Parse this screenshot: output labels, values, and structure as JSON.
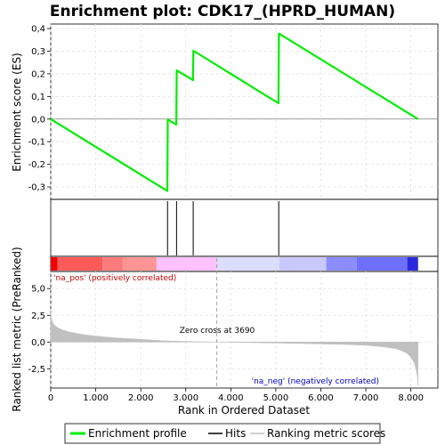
{
  "chart_data": {
    "type": "line",
    "title": "Enrichment plot: CDK17_(HPRD_HUMAN)",
    "xlabel": "Rank in Ordered Dataset",
    "x_range": [
      0,
      8600
    ],
    "x_ticks": [
      0,
      1000,
      2000,
      3000,
      4000,
      5000,
      6000,
      7000,
      8000
    ],
    "x_tick_labels": [
      "0",
      "1.000",
      "2.000",
      "3.000",
      "4.000",
      "5.000",
      "6.000",
      "7.000",
      "8.000"
    ],
    "top_panel": {
      "ylabel": "Enrichment score (ES)",
      "ylim": [
        -0.355,
        0.42
      ],
      "y_ticks": [
        -0.3,
        -0.2,
        -0.1,
        0.0,
        0.1,
        0.2,
        0.3,
        0.4
      ],
      "y_tick_labels": [
        "-0,3",
        "-0,2",
        "-0,1",
        "0,0",
        "0,1",
        "0,2",
        "0,3",
        "0,4"
      ],
      "grid": true,
      "series": [
        {
          "name": "Enrichment profile",
          "color": "#00ee00",
          "x": [
            0,
            2590,
            2600,
            2790,
            2800,
            3160,
            3170,
            5060,
            5070,
            8160
          ],
          "y": [
            0.0,
            -0.318,
            -0.002,
            -0.025,
            0.215,
            0.172,
            0.302,
            0.07,
            0.378,
            0.0
          ]
        }
      ]
    },
    "hits": {
      "name": "Hits",
      "x": [
        2595,
        2795,
        3165,
        5065
      ]
    },
    "color_bar": {
      "segments": [
        {
          "from": 0,
          "to": 150,
          "color": "#f20000"
        },
        {
          "from": 150,
          "to": 1150,
          "color": "#ff5a5a"
        },
        {
          "from": 1150,
          "to": 1600,
          "color": "#ff7a7a"
        },
        {
          "from": 1600,
          "to": 2350,
          "color": "#ff9494"
        },
        {
          "from": 2350,
          "to": 3690,
          "color": "#ffc0ff"
        },
        {
          "from": 3690,
          "to": 5080,
          "color": "#dcdcff"
        },
        {
          "from": 5080,
          "to": 6120,
          "color": "#c8c8ff"
        },
        {
          "from": 6120,
          "to": 6800,
          "color": "#8c8cff"
        },
        {
          "from": 6800,
          "to": 7920,
          "color": "#6e6eff"
        },
        {
          "from": 7920,
          "to": 8160,
          "color": "#2a2adc"
        }
      ]
    },
    "bottom_panel": {
      "ylabel": "Ranked list metric (PreRanked)",
      "ylim": [
        -4.3,
        6.6
      ],
      "y_ticks": [
        -2.5,
        0.0,
        2.5,
        5.0
      ],
      "y_tick_labels": [
        "-2,5",
        "0,0",
        "2,5",
        "5,0"
      ],
      "grid": true,
      "series": [
        {
          "name": "Ranking metric scores",
          "color": "#c0c0c0",
          "x": [
            0,
            15,
            40,
            80,
            150,
            250,
            400,
            600,
            800,
            1000,
            1200,
            1500,
            2000,
            2500,
            3000,
            3690,
            4500,
            5500,
            6500,
            7000,
            7400,
            7700,
            7900,
            8000,
            8080,
            8120,
            8150,
            8160
          ],
          "y": [
            2.8,
            2.2,
            1.85,
            1.6,
            1.35,
            1.15,
            0.95,
            0.78,
            0.65,
            0.55,
            0.47,
            0.38,
            0.25,
            0.12,
            0.05,
            0.0,
            -0.05,
            -0.12,
            -0.22,
            -0.3,
            -0.45,
            -0.65,
            -1.0,
            -1.4,
            -2.0,
            -2.6,
            -3.3,
            -4.1
          ]
        }
      ],
      "zero_cross": 3690,
      "annotations": {
        "zero_cross_text": "Zero cross at 3690",
        "pos_text": "'na_pos' (positively correlated)",
        "neg_text": "'na_neg' (negatively correlated)",
        "pos_color": "#cc0000",
        "neg_color": "#0000cc"
      }
    },
    "legend": {
      "position": "bottom",
      "entries": [
        {
          "label": "Enrichment profile",
          "color": "#00ee00"
        },
        {
          "label": "Hits",
          "color": "#000000"
        },
        {
          "label": "Ranking metric scores",
          "color": "#c0c0c0"
        }
      ]
    }
  }
}
